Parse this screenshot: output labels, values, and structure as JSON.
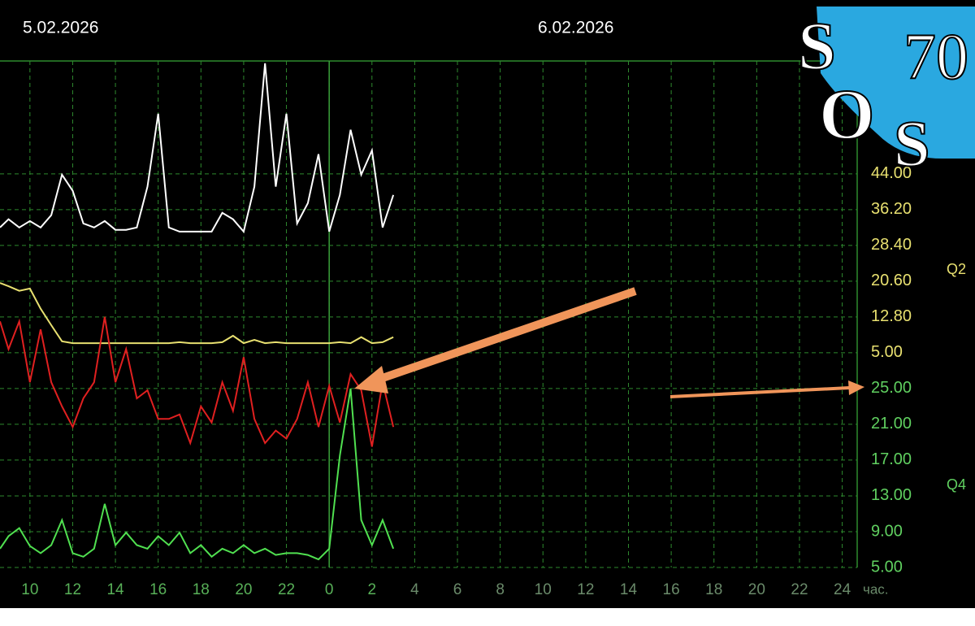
{
  "chart_data": {
    "type": "line",
    "annotations": [
      "5.02.2026",
      "6.02.2026"
    ],
    "x_unit_label": "час.",
    "axis_labels": [
      "Q2",
      "Q4"
    ],
    "x": [
      8.6,
      9,
      9.5,
      10,
      10.5,
      11,
      11.5,
      12,
      12.5,
      13,
      13.5,
      14,
      14.5,
      15,
      15.5,
      16,
      16.5,
      17,
      17.5,
      18,
      18.5,
      19,
      19.5,
      20,
      20.5,
      21,
      21.5,
      22,
      22.5,
      23,
      23.5,
      24,
      24.5,
      25,
      25.5,
      26,
      26.5,
      27
    ],
    "xlim": [
      8.6,
      48.7
    ],
    "xticks": [
      10,
      12,
      14,
      16,
      18,
      20,
      22,
      {
        "value": 24,
        "label": "0"
      },
      {
        "value": 26,
        "label": "2"
      },
      {
        "value": 28,
        "label": "4"
      },
      {
        "value": 30,
        "label": "6"
      },
      {
        "value": 32,
        "label": "8"
      },
      {
        "value": 34,
        "label": "10"
      },
      {
        "value": 36,
        "label": "12"
      },
      {
        "value": 38,
        "label": "14"
      },
      {
        "value": 40,
        "label": "16"
      },
      {
        "value": 42,
        "label": "18"
      },
      {
        "value": 44,
        "label": "20"
      },
      {
        "value": 46,
        "label": "22"
      },
      {
        "value": 48,
        "label": "24"
      }
    ],
    "midnight": 24,
    "ylim": [
      -41.8,
      68.6
    ],
    "yticks": [
      {
        "value": 5,
        "label": "5.00"
      },
      {
        "value": 12.8,
        "label": "12.80"
      },
      {
        "value": 20.6,
        "label": "20.60"
      },
      {
        "value": 28.4,
        "label": "28.40"
      },
      {
        "value": 36.2,
        "label": "36.20"
      },
      {
        "value": 44,
        "label": "44.00"
      }
    ],
    "y2lim": [
      5,
      61.6
    ],
    "y2ticks": [
      {
        "value": 5,
        "label": "5.00"
      },
      {
        "value": 9,
        "label": "9.00"
      },
      {
        "value": 13,
        "label": "13.00"
      },
      {
        "value": 17,
        "label": "17.00"
      },
      {
        "value": 21,
        "label": "21.00"
      },
      {
        "value": 25,
        "label": "25.00"
      }
    ],
    "grid": true,
    "series": [
      {
        "color": "#ffffff",
        "values": [
          32.3,
          34.1,
          32.3,
          33.7,
          32.3,
          35,
          43.8,
          40.3,
          33.2,
          32.3,
          33.7,
          31.8,
          31.8,
          32.3,
          41.2,
          57.1,
          32.3,
          31.4,
          31.4,
          31.4,
          31.4,
          35.5,
          34.1,
          31.4,
          41.2,
          68.1,
          41.2,
          57.1,
          33.2,
          37.6,
          48.3,
          31.4,
          39.4,
          53.6,
          43.8,
          49.1,
          32.3,
          39.4
        ]
      },
      {
        "color": "#e8e070",
        "values": [
          20.2,
          19.5,
          18.5,
          19,
          14.6,
          11,
          7.5,
          7.1,
          7.1,
          7.1,
          7.1,
          7.1,
          7.1,
          7.1,
          7.1,
          7.1,
          7.1,
          7.3,
          7.1,
          7.1,
          7.1,
          7.3,
          8.7,
          7.1,
          7.8,
          7.1,
          7.3,
          7.1,
          7.1,
          7.1,
          7.1,
          7.1,
          7.3,
          7.1,
          8.4,
          7.1,
          7.3,
          8.4
        ]
      },
      {
        "color": "#e02020",
        "axis": "y2",
        "values": [
          32.5,
          29.4,
          32.5,
          25.7,
          31.6,
          25.7,
          23,
          20.7,
          23.9,
          25.7,
          33,
          25.7,
          29.4,
          23.9,
          24.8,
          21.6,
          21.6,
          22.1,
          18.9,
          23,
          21.2,
          25.7,
          22.5,
          28.5,
          21.6,
          18.9,
          20.3,
          19.4,
          21.6,
          25.7,
          20.7,
          25.3,
          21.2,
          26.6,
          24.8,
          18.5,
          25.7,
          20.7
        ]
      },
      {
        "color": "#50e050",
        "axis": "y2",
        "values": [
          7.1,
          8.5,
          9.4,
          7.4,
          6.6,
          7.5,
          10.3,
          6.6,
          6.2,
          7.1,
          12.1,
          7.5,
          8.9,
          7.5,
          7.1,
          8.5,
          7.5,
          8.9,
          6.6,
          7.5,
          6.2,
          7.1,
          6.6,
          7.5,
          6.6,
          7.1,
          6.4,
          6.6,
          6.6,
          6.4,
          5.9,
          7.1,
          17.5,
          25,
          10.3,
          7.5,
          10.3,
          7.1
        ]
      }
    ]
  },
  "logo": {
    "letters": [
      "S",
      "70",
      "O",
      "S"
    ]
  }
}
